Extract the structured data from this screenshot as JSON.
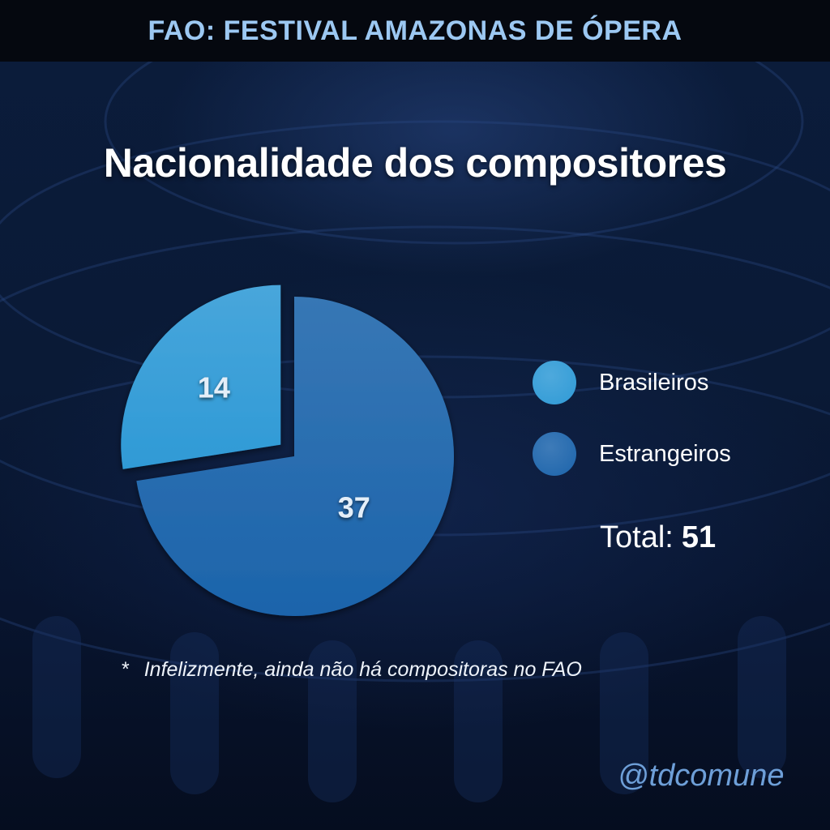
{
  "header": {
    "title": "FAO: FESTIVAL AMAZONAS DE ÓPERA"
  },
  "chart_data": {
    "type": "pie",
    "title": "Nacionalidade dos compositores",
    "slices": [
      {
        "label": "Brasileiros",
        "value": 14,
        "color": "#2f9ad6",
        "exploded": true
      },
      {
        "label": "Estrangeiros",
        "value": 37,
        "color": "#1c64ab",
        "exploded": false
      }
    ],
    "legend_placement": "right"
  },
  "total": {
    "label": "Total:",
    "value": "51"
  },
  "footnote": {
    "marker": "*",
    "text": "Infelizmente, ainda não há compositoras no FAO"
  },
  "handle": "@tdcomune",
  "colors": {
    "header_bar": "#05080f",
    "header_text": "#9cc8f2",
    "background": "#0a1a36",
    "handle_text": "#6e9fd8"
  }
}
